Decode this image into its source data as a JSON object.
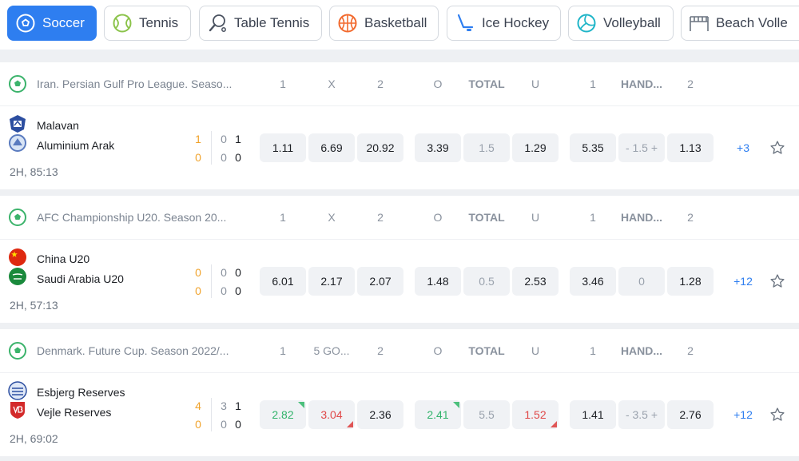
{
  "sports_tabs": [
    {
      "label": "Soccer",
      "icon": "soccer-ball-icon",
      "active": true
    },
    {
      "label": "Tennis",
      "icon": "tennis-ball-icon"
    },
    {
      "label": "Table Tennis",
      "icon": "table-tennis-icon"
    },
    {
      "label": "Basketball",
      "icon": "basketball-icon"
    },
    {
      "label": "Ice Hockey",
      "icon": "ice-hockey-icon"
    },
    {
      "label": "Volleyball",
      "icon": "volleyball-icon"
    },
    {
      "label": "Beach Volle",
      "icon": "beach-volleyball-net-icon"
    }
  ],
  "colors": {
    "accent": "#2e7ef0",
    "odds_up": "#31b36b",
    "odds_down": "#e04848",
    "main_score": "#f0a22a"
  },
  "matches": [
    {
      "league": "Iran. Persian Gulf Pro League. Seaso...",
      "columns": [
        "1",
        "X",
        "2",
        "O",
        "TOTAL",
        "U",
        "1",
        "HAND...",
        "2"
      ],
      "home": {
        "name": "Malavan",
        "score": "1",
        "half_score": "0",
        "current": "1"
      },
      "away": {
        "name": "Aluminium Arak",
        "score": "0",
        "half_score": "0",
        "current": "0"
      },
      "time": "2H, 85:13",
      "odds": {
        "w1": "1.11",
        "x": "6.69",
        "w2": "20.92",
        "over": "3.39",
        "total": "1.5",
        "under": "1.29",
        "h1": "5.35",
        "hand": "- 1.5 +",
        "h2": "1.13"
      },
      "more": "+3"
    },
    {
      "league": "AFC Championship U20. Season 20...",
      "columns": [
        "1",
        "X",
        "2",
        "O",
        "TOTAL",
        "U",
        "1",
        "HAND...",
        "2"
      ],
      "home": {
        "name": "China U20",
        "score": "0",
        "half_score": "0",
        "current": "0"
      },
      "away": {
        "name": "Saudi Arabia U20",
        "score": "0",
        "half_score": "0",
        "current": "0"
      },
      "time": "2H, 57:13",
      "odds": {
        "w1": "6.01",
        "x": "2.17",
        "w2": "2.07",
        "over": "1.48",
        "total": "0.5",
        "under": "2.53",
        "h1": "3.46",
        "hand": "0",
        "h2": "1.28"
      },
      "more": "+12"
    },
    {
      "league": "Denmark. Future Cup. Season 2022/...",
      "columns": [
        "1",
        "5 GO...",
        "2",
        "O",
        "TOTAL",
        "U",
        "1",
        "HAND...",
        "2"
      ],
      "home": {
        "name": "Esbjerg Reserves",
        "score": "4",
        "half_score": "3",
        "current": "1"
      },
      "away": {
        "name": "Vejle Reserves",
        "score": "0",
        "half_score": "0",
        "current": "0"
      },
      "time": "2H, 69:02",
      "odds": {
        "w1": "2.82",
        "x": "3.04",
        "w2": "2.36",
        "over": "2.41",
        "total": "5.5",
        "under": "1.52",
        "h1": "1.41",
        "hand": "- 3.5 +",
        "h2": "2.76"
      },
      "more": "+12"
    }
  ]
}
